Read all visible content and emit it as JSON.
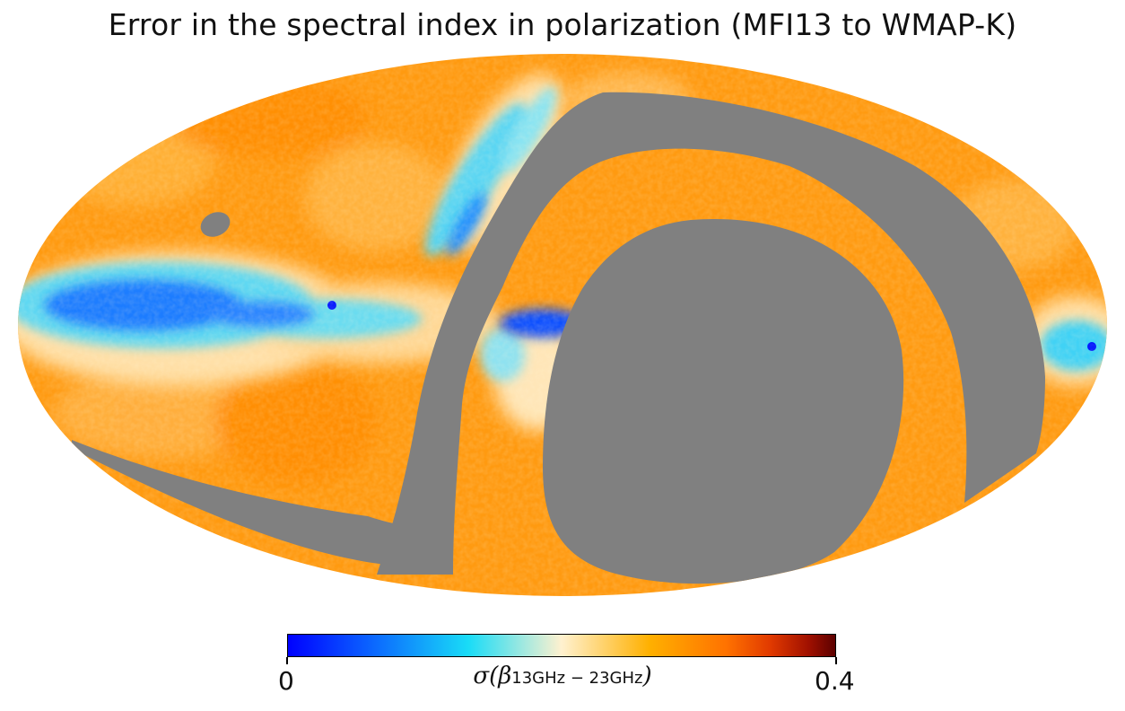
{
  "title": "Error in the spectral index in polarization (MFI13 to WMAP-K)",
  "colorbar": {
    "min_label": "0",
    "max_label": "0.4",
    "label_main": "σ(β",
    "label_sub": "13GHz − 23GHz",
    "label_close": ")",
    "gradient": [
      "#0000ff",
      "#0a6cff",
      "#19dcf7",
      "#fff1cf",
      "#ffb000",
      "#ff7a00",
      "#e13a00",
      "#b01000",
      "#600000"
    ]
  },
  "map": {
    "projection": "mollweide",
    "mask_color": "#808080",
    "low_color": "#0a5cff",
    "mid_color": "#19d4f5",
    "high_color": "#ff9900"
  }
}
